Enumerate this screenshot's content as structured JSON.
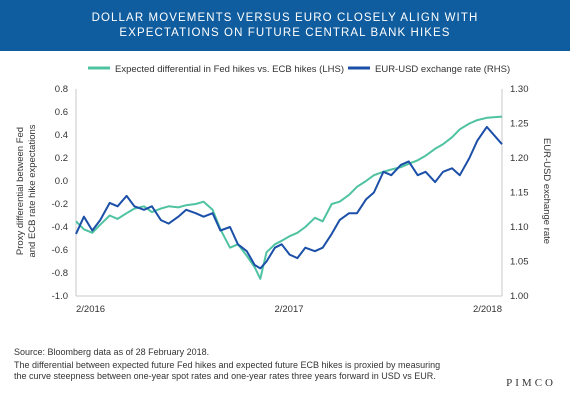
{
  "title_line1": "DOLLAR MOVEMENTS VERSUS EURO CLOSELY ALIGN WITH",
  "title_line2": "EXPECTATIONS ON FUTURE CENTRAL BANK HIKES",
  "footer": {
    "source": "Source: Bloomberg data as of 28 February 2018.",
    "note_line1": "The differential between expected future Fed hikes and expected future ECB hikes is proxied by measuring",
    "note_line2": "the curve steepness between one-year spot rates and one-year rates three years forward in USD vs EUR.",
    "brand": "PIMCO"
  },
  "colors": {
    "band": "#0f5c9e",
    "series_lhs": "#4fc3a1",
    "series_rhs": "#1b4fa8"
  },
  "chart_data": {
    "type": "line",
    "ylabel_left_line1": "Proxy differential between Fed",
    "ylabel_left_line2": "and ECB rate hike expectations",
    "ylabel_right": "EUR-USD exchange rate",
    "ylim_left": [
      -1.0,
      0.8
    ],
    "ylim_right": [
      1.0,
      1.3
    ],
    "yticks_left": [
      "0.8",
      "0.6",
      "0.4",
      "0.2",
      "0.0",
      "-0.2",
      "-0.4",
      "-0.6",
      "-0.8",
      "-1.0"
    ],
    "yticks_right": [
      "1.30",
      "1.25",
      "1.20",
      "1.15",
      "1.10",
      "1.05",
      "1.00"
    ],
    "xticks": [
      "2/2016",
      "2/2017",
      "2/2018"
    ],
    "xlim": [
      "2016-02-01",
      "2018-02-28"
    ],
    "legend_position": "top",
    "series": [
      {
        "name": "Expected differential in Fed hikes vs. ECB hikes (LHS)",
        "axis": "left",
        "points": [
          [
            "2016-02-01",
            -0.35
          ],
          [
            "2016-02-15",
            -0.42
          ],
          [
            "2016-03-01",
            -0.45
          ],
          [
            "2016-03-15",
            -0.38
          ],
          [
            "2016-04-01",
            -0.3
          ],
          [
            "2016-04-15",
            -0.33
          ],
          [
            "2016-05-01",
            -0.28
          ],
          [
            "2016-05-15",
            -0.24
          ],
          [
            "2016-06-01",
            -0.22
          ],
          [
            "2016-06-15",
            -0.27
          ],
          [
            "2016-07-01",
            -0.24
          ],
          [
            "2016-07-15",
            -0.22
          ],
          [
            "2016-08-01",
            -0.23
          ],
          [
            "2016-08-15",
            -0.21
          ],
          [
            "2016-09-01",
            -0.2
          ],
          [
            "2016-09-15",
            -0.18
          ],
          [
            "2016-10-01",
            -0.25
          ],
          [
            "2016-10-15",
            -0.42
          ],
          [
            "2016-11-01",
            -0.58
          ],
          [
            "2016-11-15",
            -0.55
          ],
          [
            "2016-12-01",
            -0.65
          ],
          [
            "2016-12-15",
            -0.75
          ],
          [
            "2016-12-25",
            -0.85
          ],
          [
            "2017-01-05",
            -0.62
          ],
          [
            "2017-01-20",
            -0.55
          ],
          [
            "2017-02-01",
            -0.52
          ],
          [
            "2017-02-15",
            -0.48
          ],
          [
            "2017-03-01",
            -0.45
          ],
          [
            "2017-03-15",
            -0.4
          ],
          [
            "2017-04-01",
            -0.32
          ],
          [
            "2017-04-15",
            -0.35
          ],
          [
            "2017-05-01",
            -0.2
          ],
          [
            "2017-05-15",
            -0.18
          ],
          [
            "2017-06-01",
            -0.12
          ],
          [
            "2017-06-15",
            -0.05
          ],
          [
            "2017-07-01",
            0.0
          ],
          [
            "2017-07-15",
            0.05
          ],
          [
            "2017-08-01",
            0.08
          ],
          [
            "2017-08-15",
            0.1
          ],
          [
            "2017-09-01",
            0.12
          ],
          [
            "2017-09-15",
            0.15
          ],
          [
            "2017-10-01",
            0.18
          ],
          [
            "2017-10-15",
            0.22
          ],
          [
            "2017-11-01",
            0.28
          ],
          [
            "2017-11-15",
            0.32
          ],
          [
            "2017-12-01",
            0.38
          ],
          [
            "2017-12-15",
            0.45
          ],
          [
            "2018-01-01",
            0.5
          ],
          [
            "2018-01-15",
            0.53
          ],
          [
            "2018-02-01",
            0.55
          ],
          [
            "2018-02-28",
            0.56
          ]
        ]
      },
      {
        "name": "EUR-USD exchange rate (RHS)",
        "axis": "right",
        "points": [
          [
            "2016-02-01",
            1.09
          ],
          [
            "2016-02-15",
            1.115
          ],
          [
            "2016-03-01",
            1.095
          ],
          [
            "2016-03-15",
            1.11
          ],
          [
            "2016-04-01",
            1.135
          ],
          [
            "2016-04-15",
            1.13
          ],
          [
            "2016-05-01",
            1.145
          ],
          [
            "2016-05-15",
            1.13
          ],
          [
            "2016-06-01",
            1.125
          ],
          [
            "2016-06-15",
            1.13
          ],
          [
            "2016-07-01",
            1.11
          ],
          [
            "2016-07-15",
            1.105
          ],
          [
            "2016-08-01",
            1.115
          ],
          [
            "2016-08-15",
            1.125
          ],
          [
            "2016-09-01",
            1.12
          ],
          [
            "2016-09-15",
            1.115
          ],
          [
            "2016-10-01",
            1.12
          ],
          [
            "2016-10-15",
            1.095
          ],
          [
            "2016-11-01",
            1.1
          ],
          [
            "2016-11-15",
            1.075
          ],
          [
            "2016-12-01",
            1.065
          ],
          [
            "2016-12-15",
            1.045
          ],
          [
            "2016-12-25",
            1.04
          ],
          [
            "2017-01-05",
            1.05
          ],
          [
            "2017-01-20",
            1.07
          ],
          [
            "2017-02-01",
            1.075
          ],
          [
            "2017-02-15",
            1.06
          ],
          [
            "2017-03-01",
            1.055
          ],
          [
            "2017-03-15",
            1.07
          ],
          [
            "2017-04-01",
            1.065
          ],
          [
            "2017-04-15",
            1.07
          ],
          [
            "2017-05-01",
            1.09
          ],
          [
            "2017-05-15",
            1.11
          ],
          [
            "2017-06-01",
            1.12
          ],
          [
            "2017-06-15",
            1.12
          ],
          [
            "2017-07-01",
            1.14
          ],
          [
            "2017-07-15",
            1.15
          ],
          [
            "2017-08-01",
            1.18
          ],
          [
            "2017-08-15",
            1.175
          ],
          [
            "2017-09-01",
            1.19
          ],
          [
            "2017-09-15",
            1.195
          ],
          [
            "2017-10-01",
            1.175
          ],
          [
            "2017-10-15",
            1.18
          ],
          [
            "2017-11-01",
            1.165
          ],
          [
            "2017-11-15",
            1.18
          ],
          [
            "2017-12-01",
            1.185
          ],
          [
            "2017-12-15",
            1.175
          ],
          [
            "2018-01-01",
            1.2
          ],
          [
            "2018-01-15",
            1.225
          ],
          [
            "2018-02-01",
            1.245
          ],
          [
            "2018-02-28",
            1.22
          ]
        ]
      }
    ]
  }
}
